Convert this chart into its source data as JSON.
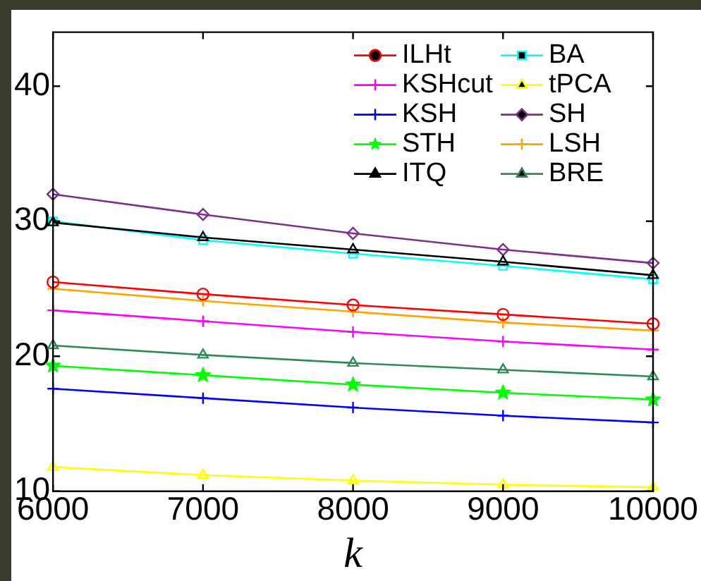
{
  "chart_data": {
    "type": "line",
    "xlabel": "k",
    "x": [
      6000,
      7000,
      8000,
      9000,
      10000
    ],
    "xlim": [
      6000,
      10000
    ],
    "xticks": [
      6000,
      7000,
      8000,
      9000,
      10000
    ],
    "ylim": [
      10,
      44
    ],
    "yticks": [
      10,
      20,
      30,
      40
    ],
    "grid": false,
    "legend": "top right",
    "line_style": "solid",
    "series": [
      {
        "name": "ILHt",
        "color": "#ff0000",
        "marker": "circle",
        "values": [
          25.5,
          24.6,
          23.8,
          23.1,
          22.4
        ]
      },
      {
        "name": "KSHcut",
        "color": "#ff00ff",
        "marker": "cross",
        "values": [
          23.4,
          22.6,
          21.8,
          21.1,
          20.5
        ]
      },
      {
        "name": "KSH",
        "color": "#0000ff",
        "marker": "cross",
        "values": [
          17.6,
          16.9,
          16.2,
          15.6,
          15.1
        ]
      },
      {
        "name": "STH",
        "color": "#00ff00",
        "marker": "star",
        "values": [
          19.3,
          18.6,
          17.9,
          17.3,
          16.8
        ]
      },
      {
        "name": "ITQ",
        "color": "#000000",
        "marker": "triangle",
        "values": [
          29.9,
          28.8,
          27.9,
          27.0,
          26.0
        ]
      },
      {
        "name": "BA",
        "color": "#00ffff",
        "marker": "square",
        "values": [
          30.0,
          28.6,
          27.6,
          26.7,
          25.7
        ]
      },
      {
        "name": "tPCA",
        "color": "#ffff00",
        "marker": "triangle",
        "values": [
          11.8,
          11.2,
          10.8,
          10.5,
          10.3
        ]
      },
      {
        "name": "SH",
        "color": "#7e2f8e",
        "marker": "diamond",
        "values": [
          32.0,
          30.5,
          29.1,
          27.9,
          26.9
        ]
      },
      {
        "name": "LSH",
        "color": "#ffa500",
        "marker": "cross",
        "values": [
          25.0,
          24.1,
          23.3,
          22.5,
          21.9
        ]
      },
      {
        "name": "BRE",
        "color": "#2e8b57",
        "marker": "triangle",
        "values": [
          20.8,
          20.1,
          19.5,
          19.0,
          18.5
        ]
      }
    ]
  }
}
